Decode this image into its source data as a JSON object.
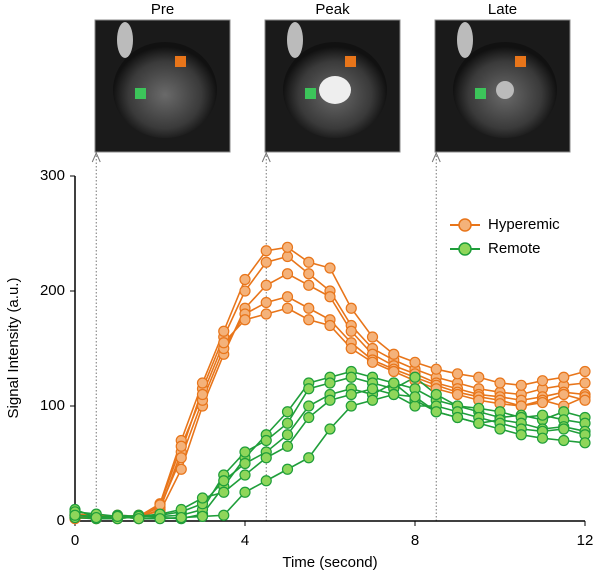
{
  "chart_data": {
    "type": "line",
    "xlabel": "Time (second)",
    "ylabel": "Signal Intensity (a.u.)",
    "x": [
      0,
      0.5,
      1,
      1.5,
      2,
      2.5,
      3,
      3.5,
      4,
      4.5,
      5,
      5.5,
      6,
      6.5,
      7,
      7.5,
      8,
      8.5,
      9,
      9.5,
      10,
      10.5,
      11,
      11.5,
      12
    ],
    "xlim": [
      0,
      12
    ],
    "xticks": [
      0,
      4,
      8,
      12
    ],
    "ylim": [
      0,
      300
    ],
    "yticks": [
      0,
      100,
      200,
      300
    ],
    "legend": "upper right",
    "series": [
      {
        "name": "Hyperemic",
        "color": "#e8751a",
        "fill": "#f4b27a",
        "curves": [
          [
            5,
            3,
            4,
            3,
            10,
            60,
            115,
            160,
            200,
            225,
            230,
            215,
            200,
            170,
            150,
            140,
            132,
            125,
            120,
            115,
            112,
            110,
            115,
            118,
            120
          ],
          [
            3,
            2,
            5,
            4,
            15,
            70,
            120,
            165,
            210,
            235,
            238,
            225,
            220,
            185,
            160,
            145,
            138,
            132,
            128,
            125,
            120,
            118,
            122,
            125,
            130
          ],
          [
            2,
            4,
            3,
            5,
            8,
            45,
            100,
            145,
            185,
            205,
            215,
            205,
            195,
            165,
            145,
            135,
            128,
            120,
            115,
            110,
            108,
            105,
            108,
            112,
            110
          ],
          [
            4,
            3,
            2,
            4,
            12,
            55,
            105,
            150,
            180,
            190,
            195,
            185,
            175,
            155,
            140,
            132,
            125,
            118,
            112,
            108,
            105,
            100,
            105,
            100,
            108
          ],
          [
            6,
            5,
            4,
            2,
            14,
            65,
            110,
            155,
            175,
            180,
            185,
            175,
            170,
            150,
            138,
            130,
            122,
            115,
            110,
            105,
            102,
            100,
            103,
            110,
            105
          ]
        ]
      },
      {
        "name": "Remote",
        "color": "#1f9e3a",
        "fill": "#8fd65a",
        "curves": [
          [
            10,
            3,
            5,
            4,
            3,
            2,
            6,
            30,
            55,
            75,
            95,
            120,
            125,
            130,
            125,
            120,
            115,
            105,
            100,
            95,
            90,
            92,
            88,
            95,
            90
          ],
          [
            5,
            4,
            3,
            5,
            4,
            5,
            10,
            40,
            60,
            70,
            85,
            115,
            120,
            125,
            120,
            115,
            125,
            110,
            100,
            98,
            95,
            90,
            92,
            88,
            85
          ],
          [
            8,
            6,
            4,
            3,
            5,
            8,
            15,
            35,
            50,
            60,
            75,
            100,
            110,
            115,
            110,
            120,
            105,
            95,
            90,
            85,
            88,
            85,
            80,
            82,
            78
          ],
          [
            3,
            2,
            2,
            4,
            6,
            10,
            20,
            25,
            40,
            55,
            65,
            90,
            105,
            110,
            115,
            110,
            100,
            100,
            95,
            90,
            85,
            80,
            78,
            80,
            75
          ],
          [
            5,
            3,
            4,
            2,
            2,
            3,
            4,
            5,
            25,
            35,
            45,
            55,
            80,
            100,
            105,
            110,
            108,
            95,
            90,
            85,
            80,
            75,
            72,
            70,
            68
          ]
        ]
      }
    ],
    "images": [
      {
        "label": "Pre",
        "x": 0.5
      },
      {
        "label": "Peak",
        "x": 4.5
      },
      {
        "label": "Late",
        "x": 8.5
      }
    ]
  }
}
